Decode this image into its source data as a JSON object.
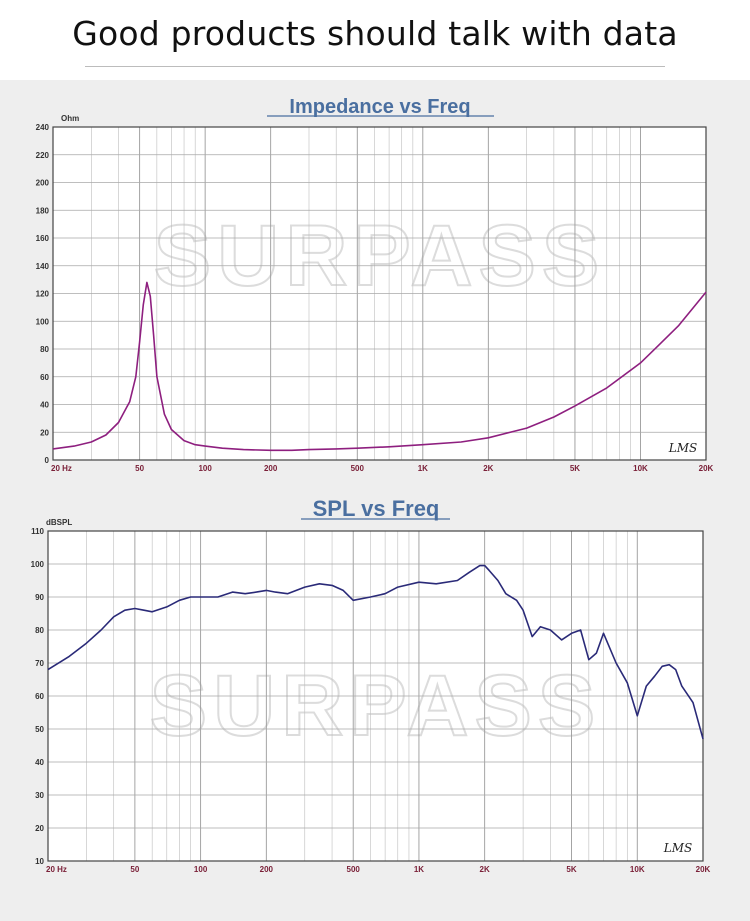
{
  "headline": "Good products should talk with data",
  "watermark": "SURPASS",
  "chart_data": [
    {
      "type": "line",
      "title": "Impedance vs Freq",
      "ylabel": "Ohm",
      "xscale": "log",
      "xlim": [
        20,
        20000
      ],
      "ylim": [
        0,
        240
      ],
      "grid": true,
      "brand": "LMS",
      "xticks": [
        "20 Hz",
        "50",
        "100",
        "200",
        "500",
        "1K",
        "2K",
        "5K",
        "10K",
        "20K"
      ],
      "xtick_values": [
        20,
        50,
        100,
        200,
        500,
        1000,
        2000,
        5000,
        10000,
        20000
      ],
      "yticks": [
        "0",
        "20",
        "40",
        "60",
        "80",
        "100",
        "120",
        "140",
        "160",
        "180",
        "200",
        "220",
        "240"
      ],
      "color": "#8e1f7f",
      "series": [
        {
          "x": [
            20,
            25,
            30,
            35,
            40,
            45,
            48,
            50,
            52,
            54,
            56,
            58,
            60,
            65,
            70,
            80,
            90,
            100,
            120,
            150,
            200,
            250,
            300,
            400,
            500,
            700,
            1000,
            1500,
            2000,
            3000,
            4000,
            5000,
            7000,
            10000,
            12000,
            15000,
            20000
          ],
          "y": [
            8,
            10,
            13,
            18,
            27,
            42,
            60,
            85,
            112,
            128,
            118,
            90,
            60,
            33,
            22,
            14,
            11,
            10,
            8.5,
            7.5,
            7,
            7,
            7.5,
            8,
            8.5,
            9.5,
            11,
            13,
            16,
            23,
            31,
            39,
            52,
            70,
            82,
            97,
            121
          ]
        }
      ]
    },
    {
      "type": "line",
      "title": "SPL vs Freq",
      "ylabel": "dBSPL",
      "xscale": "log",
      "xlim": [
        20,
        20000
      ],
      "ylim": [
        10,
        110
      ],
      "grid": true,
      "brand": "LMS",
      "xticks": [
        "20 Hz",
        "50",
        "100",
        "200",
        "500",
        "1K",
        "2K",
        "5K",
        "10K",
        "20K"
      ],
      "xtick_values": [
        20,
        50,
        100,
        200,
        500,
        1000,
        2000,
        5000,
        10000,
        20000
      ],
      "yticks": [
        "10",
        "20",
        "30",
        "40",
        "50",
        "60",
        "70",
        "80",
        "90",
        "100",
        "110"
      ],
      "color": "#2a2a78",
      "series": [
        {
          "x": [
            20,
            25,
            30,
            35,
            40,
            45,
            50,
            55,
            60,
            70,
            80,
            90,
            100,
            120,
            140,
            160,
            180,
            200,
            220,
            250,
            300,
            350,
            400,
            450,
            500,
            600,
            700,
            800,
            1000,
            1200,
            1500,
            1700,
            1900,
            2000,
            2100,
            2300,
            2500,
            2800,
            3000,
            3300,
            3600,
            4000,
            4500,
            5000,
            5500,
            6000,
            6500,
            7000,
            8000,
            9000,
            10000,
            11000,
            12000,
            13000,
            14000,
            15000,
            16000,
            18000,
            20000
          ],
          "y": [
            68,
            72,
            76,
            80,
            84,
            86,
            86.5,
            86,
            85.5,
            87,
            89,
            90,
            90,
            90,
            91.5,
            91,
            91.5,
            92,
            91.5,
            91,
            93,
            94,
            93.5,
            92,
            89,
            90,
            91,
            93,
            94.5,
            94,
            95,
            97.5,
            99.5,
            99.5,
            98,
            95,
            91,
            89,
            86,
            78,
            81,
            80,
            77,
            79,
            80,
            71,
            73,
            79,
            70,
            64,
            54,
            63,
            66,
            69,
            69.5,
            68,
            63,
            58,
            47
          ]
        }
      ]
    }
  ]
}
